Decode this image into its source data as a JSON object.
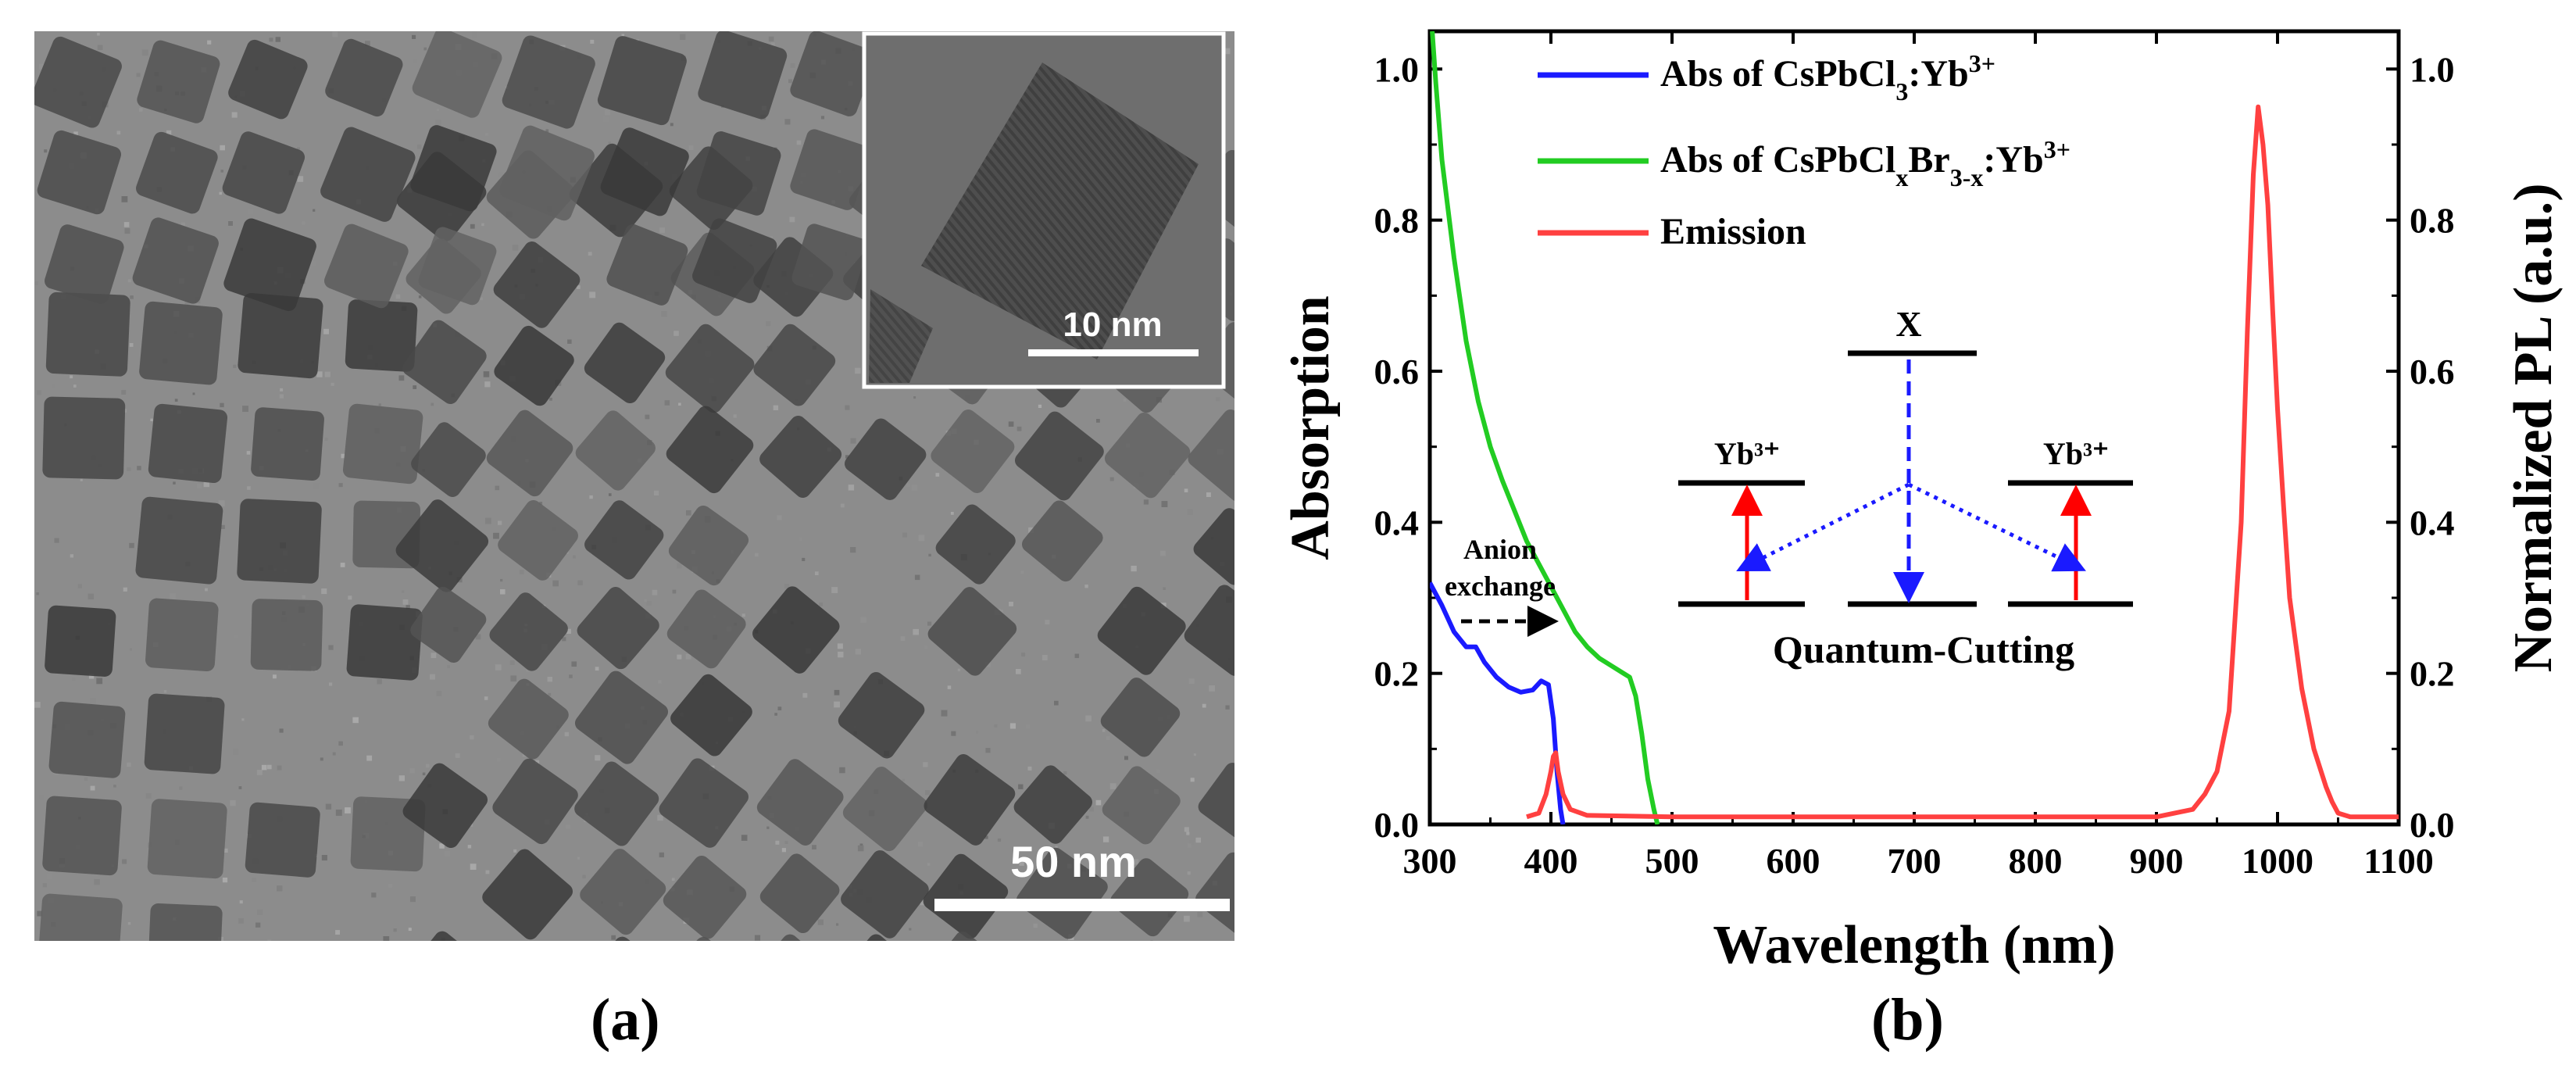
{
  "panel_a": {
    "label": "(a)",
    "scale_bar": "50 nm",
    "inset_scale_bar": "10 nm"
  },
  "panel_b": {
    "label": "(b)",
    "schematic": {
      "top_level": "X",
      "left_ion": "Yb³⁺",
      "right_ion": "Yb³⁺",
      "caption": "Quantum-Cutting"
    },
    "annotation": [
      "Anion",
      "exchange"
    ]
  },
  "colors": {
    "blue": "#1a1aff",
    "green": "#22cc22",
    "red": "#ff4040"
  },
  "chart_data": {
    "type": "line",
    "xlabel": "Wavelength (nm)",
    "ylabel": "Absorption",
    "y2label": "Normalized PL (a.u.)",
    "xlim": [
      300,
      1100
    ],
    "ylim": [
      0,
      1.05
    ],
    "y2lim": [
      0,
      1.05
    ],
    "xticks": [
      300,
      400,
      500,
      600,
      700,
      800,
      900,
      1000,
      1100
    ],
    "yticks": [
      0.0,
      0.2,
      0.4,
      0.6,
      0.8,
      1.0
    ],
    "legend_position": "top-left",
    "series": [
      {
        "name": "Abs of CsPbCl3:Yb3+",
        "legend_parts": [
          [
            "Abs of CsPbCl",
            ""
          ],
          [
            "3",
            "sub"
          ],
          [
            ":Yb",
            ""
          ],
          [
            "3+",
            "sup"
          ]
        ],
        "color": "#1a1aff",
        "axis": "left",
        "x": [
          300,
          310,
          320,
          330,
          338,
          345,
          355,
          365,
          375,
          385,
          392,
          398,
          402,
          405,
          408,
          410
        ],
        "y": [
          0.32,
          0.29,
          0.255,
          0.235,
          0.235,
          0.215,
          0.195,
          0.182,
          0.175,
          0.178,
          0.19,
          0.185,
          0.14,
          0.07,
          0.02,
          0.0
        ]
      },
      {
        "name": "Abs of CsPbClxBr3-x:Yb3+",
        "legend_parts": [
          [
            "Abs of CsPbCl",
            ""
          ],
          [
            "x",
            "sub"
          ],
          [
            "Br",
            ""
          ],
          [
            "3-x",
            "sub"
          ],
          [
            ":Yb",
            ""
          ],
          [
            "3+",
            "sup"
          ]
        ],
        "color": "#22cc22",
        "axis": "left",
        "x": [
          302,
          305,
          310,
          320,
          330,
          340,
          350,
          360,
          370,
          380,
          390,
          400,
          410,
          420,
          430,
          440,
          450,
          460,
          465,
          470,
          475,
          480,
          485,
          488
        ],
        "y": [
          1.05,
          0.98,
          0.88,
          0.75,
          0.64,
          0.56,
          0.5,
          0.455,
          0.415,
          0.375,
          0.345,
          0.315,
          0.285,
          0.255,
          0.235,
          0.22,
          0.21,
          0.2,
          0.195,
          0.17,
          0.12,
          0.06,
          0.02,
          0.0
        ]
      },
      {
        "name": "Emission",
        "legend_parts": [
          [
            "Emission",
            ""
          ]
        ],
        "color": "#ff4040",
        "axis": "right",
        "x": [
          380,
          390,
          396,
          400,
          402,
          404,
          406,
          410,
          416,
          430,
          500,
          600,
          700,
          800,
          900,
          930,
          940,
          950,
          960,
          970,
          975,
          980,
          984,
          988,
          992,
          996,
          1000,
          1005,
          1010,
          1020,
          1030,
          1040,
          1045,
          1050,
          1060,
          1080,
          1100
        ],
        "y": [
          0.01,
          0.015,
          0.04,
          0.07,
          0.09,
          0.095,
          0.07,
          0.04,
          0.02,
          0.012,
          0.01,
          0.01,
          0.01,
          0.01,
          0.01,
          0.02,
          0.04,
          0.07,
          0.15,
          0.4,
          0.65,
          0.86,
          0.95,
          0.9,
          0.82,
          0.68,
          0.55,
          0.42,
          0.3,
          0.18,
          0.1,
          0.05,
          0.03,
          0.015,
          0.01,
          0.01,
          0.01
        ]
      }
    ]
  }
}
